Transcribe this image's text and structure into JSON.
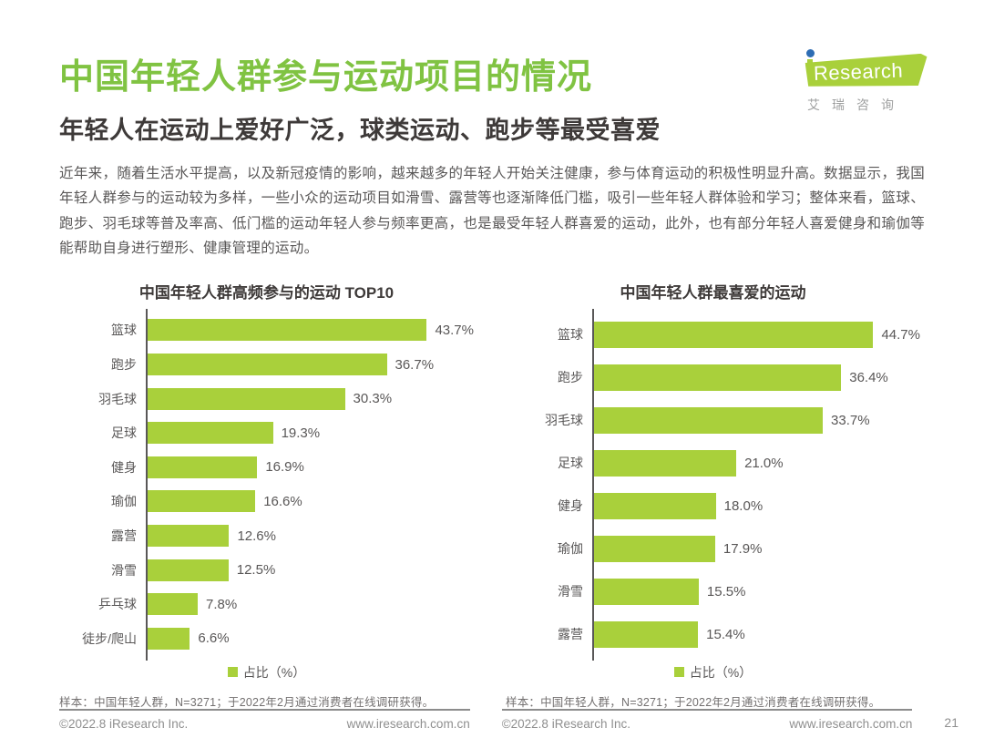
{
  "page": {
    "title": "中国年轻人群参与运动项目的情况",
    "subtitle": "年轻人在运动上爱好广泛，球类运动、跑步等最受喜爱",
    "paragraph": "近年来，随着生活水平提高，以及新冠疫情的影响，越来越多的年轻人开始关注健康，参与体育运动的积极性明显升高。数据显示，我国年轻人群参与的运动较为多样，一些小众的运动项目如滑雪、露营等也逐渐降低门槛，吸引一些年轻人群体验和学习；整体来看，篮球、跑步、羽毛球等普及率高、低门槛的运动年轻人参与频率更高，也是最受年轻人群喜爱的运动，此外，也有部分年轻人喜爱健身和瑜伽等能帮助自身进行塑形、健康管理的运动。",
    "page_number": "21"
  },
  "logo": {
    "brand_text": "Research",
    "caption": "艾瑞咨询"
  },
  "colors": {
    "title_green": "#80c342",
    "bar_green": "#a9d03b",
    "logo_dot_blue": "#2e6db4"
  },
  "chart_data": [
    {
      "type": "bar",
      "orientation": "horizontal",
      "title": "中国年轻人群高频参与的运动 TOP10",
      "categories": [
        "篮球",
        "跑步",
        "羽毛球",
        "足球",
        "健身",
        "瑜伽",
        "露营",
        "滑雪",
        "乒乓球",
        "徒步/爬山"
      ],
      "values": [
        43.7,
        36.7,
        30.3,
        19.3,
        16.9,
        16.6,
        12.6,
        12.5,
        7.8,
        6.6
      ],
      "value_labels": [
        "43.7%",
        "36.7%",
        "30.3%",
        "19.3%",
        "16.9%",
        "16.6%",
        "12.6%",
        "12.5%",
        "7.8%",
        "6.6%"
      ],
      "legend": "占比（%）",
      "footnote": "样本：中国年轻人群，N=3271；于2022年2月通过消费者在线调研获得。",
      "xlim": [
        0,
        50
      ],
      "grid": false,
      "legend_position": "bottom-center"
    },
    {
      "type": "bar",
      "orientation": "horizontal",
      "title": "中国年轻人群最喜爱的运动",
      "categories": [
        "篮球",
        "跑步",
        "羽毛球",
        "足球",
        "健身",
        "瑜伽",
        "滑雪",
        "露营"
      ],
      "values": [
        44.7,
        36.4,
        33.7,
        21.0,
        18.0,
        17.9,
        15.5,
        15.4
      ],
      "value_labels": [
        "44.7%",
        "36.4%",
        "33.7%",
        "21.0%",
        "18.0%",
        "17.9%",
        "15.5%",
        "15.4%"
      ],
      "legend": "占比（%）",
      "footnote": "样本：中国年轻人群，N=3271；于2022年2月通过消费者在线调研获得。",
      "xlim": [
        0,
        48
      ],
      "grid": false,
      "legend_position": "bottom-center"
    }
  ],
  "footer": {
    "left": {
      "copyright": "©2022.8 iResearch Inc.",
      "site": "www.iresearch.com.cn"
    },
    "right": {
      "copyright": "©2022.8 iResearch Inc.",
      "site": "www.iresearch.com.cn"
    }
  }
}
